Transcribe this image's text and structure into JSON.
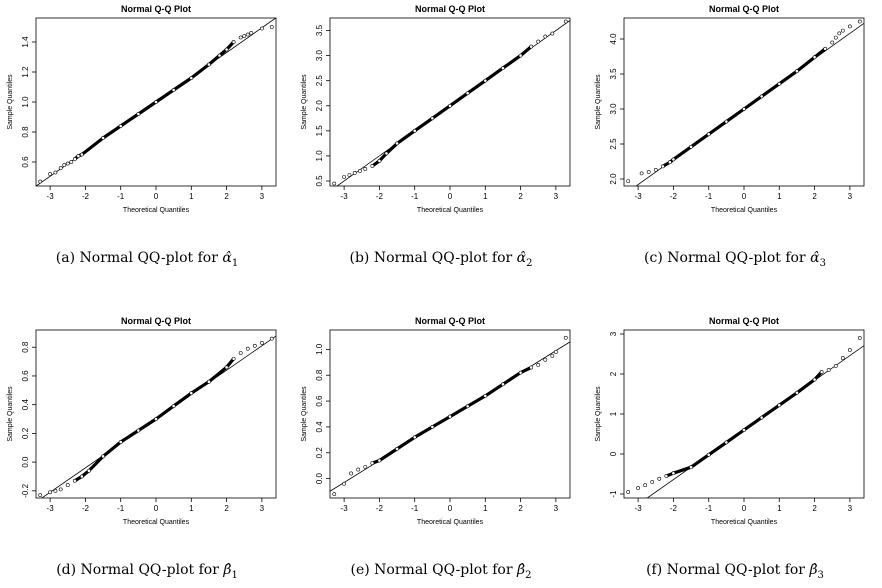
{
  "chart_data": [
    {
      "type": "scatter",
      "title": "Normal Q-Q Plot",
      "xlabel": "Theoretical Quantiles",
      "ylabel": "Sample Quantiles",
      "xlim": [
        -3.4,
        3.4
      ],
      "ylim": [
        0.44,
        1.56
      ],
      "xticks": [
        -3,
        -2,
        -1,
        0,
        1,
        2,
        3
      ],
      "yticks": [
        0.6,
        0.8,
        1.0,
        1.2,
        1.4
      ],
      "ytick_labels": [
        "0.6",
        "0.8",
        "1.0",
        "1.2",
        "1.4"
      ],
      "reference_line": {
        "intercept": 1.0,
        "slope": 0.165
      },
      "points": [
        [
          -3.28,
          0.47
        ],
        [
          -3.0,
          0.52
        ],
        [
          -2.85,
          0.53
        ],
        [
          -2.7,
          0.56
        ],
        [
          -2.6,
          0.58
        ],
        [
          -2.5,
          0.59
        ],
        [
          -2.4,
          0.6
        ],
        [
          -2.3,
          0.62
        ],
        [
          -2.2,
          0.64
        ],
        [
          -2.1,
          0.65
        ],
        [
          -1.5,
          0.76
        ],
        [
          -1.0,
          0.84
        ],
        [
          -0.5,
          0.92
        ],
        [
          0,
          1.0
        ],
        [
          0.5,
          1.08
        ],
        [
          1.0,
          1.16
        ],
        [
          1.5,
          1.25
        ],
        [
          1.8,
          1.31
        ],
        [
          2.0,
          1.35
        ],
        [
          2.2,
          1.4
        ],
        [
          2.4,
          1.43
        ],
        [
          2.5,
          1.44
        ],
        [
          2.6,
          1.45
        ],
        [
          2.7,
          1.46
        ],
        [
          3.0,
          1.49
        ],
        [
          3.28,
          1.5
        ]
      ],
      "caption": {
        "text": "(a) Normal QQ-plot for",
        "symbol": "α̂",
        "sub": "1"
      }
    },
    {
      "type": "scatter",
      "title": "Normal Q-Q Plot",
      "xlabel": "Theoretical Quantiles",
      "ylabel": "Sample Quantiles",
      "xlim": [
        -3.4,
        3.4
      ],
      "ylim": [
        0.4,
        3.75
      ],
      "xticks": [
        -3,
        -2,
        -1,
        0,
        1,
        2,
        3
      ],
      "yticks": [
        0.5,
        1.0,
        1.5,
        2.0,
        2.5,
        3.0,
        3.5
      ],
      "ytick_labels": [
        "0.5",
        "1.0",
        "1.5",
        "2.0",
        "2.5",
        "3.0",
        "3.5"
      ],
      "reference_line": {
        "intercept": 2.0,
        "slope": 0.5
      },
      "points": [
        [
          -3.28,
          0.45
        ],
        [
          -3.0,
          0.58
        ],
        [
          -2.85,
          0.62
        ],
        [
          -2.7,
          0.66
        ],
        [
          -2.55,
          0.7
        ],
        [
          -2.4,
          0.74
        ],
        [
          -2.2,
          0.8
        ],
        [
          -2.0,
          0.9
        ],
        [
          -1.8,
          1.05
        ],
        [
          -1.5,
          1.25
        ],
        [
          -1.0,
          1.5
        ],
        [
          -0.5,
          1.75
        ],
        [
          0,
          2.0
        ],
        [
          0.5,
          2.25
        ],
        [
          1.0,
          2.5
        ],
        [
          1.5,
          2.75
        ],
        [
          2.0,
          3.0
        ],
        [
          2.3,
          3.18
        ],
        [
          2.5,
          3.28
        ],
        [
          2.7,
          3.38
        ],
        [
          2.9,
          3.44
        ],
        [
          3.28,
          3.68
        ]
      ],
      "caption": {
        "text": "(b) Normal QQ-plot for",
        "symbol": "α̂",
        "sub": "2"
      }
    },
    {
      "type": "scatter",
      "title": "Normal Q-Q Plot",
      "xlabel": "Theoretical Quantiles",
      "ylabel": "Sample Quantiles",
      "xlim": [
        -3.4,
        3.4
      ],
      "ylim": [
        1.9,
        4.3
      ],
      "xticks": [
        -3,
        -2,
        -1,
        0,
        1,
        2,
        3
      ],
      "yticks": [
        2.0,
        2.5,
        3.0,
        3.5,
        4.0
      ],
      "ytick_labels": [
        "2.0",
        "2.5",
        "3.0",
        "3.5",
        "4.0"
      ],
      "reference_line": {
        "intercept": 3.0,
        "slope": 0.36
      },
      "points": [
        [
          -3.28,
          1.97
        ],
        [
          -2.9,
          2.08
        ],
        [
          -2.7,
          2.1
        ],
        [
          -2.5,
          2.13
        ],
        [
          -2.3,
          2.18
        ],
        [
          -2.1,
          2.24
        ],
        [
          -2.0,
          2.28
        ],
        [
          -1.5,
          2.46
        ],
        [
          -1.0,
          2.64
        ],
        [
          -0.5,
          2.82
        ],
        [
          0,
          3.0
        ],
        [
          0.5,
          3.18
        ],
        [
          1.0,
          3.36
        ],
        [
          1.5,
          3.54
        ],
        [
          2.0,
          3.74
        ],
        [
          2.3,
          3.86
        ],
        [
          2.5,
          3.95
        ],
        [
          2.6,
          4.02
        ],
        [
          2.7,
          4.08
        ],
        [
          2.8,
          4.12
        ],
        [
          3.0,
          4.18
        ],
        [
          3.28,
          4.25
        ]
      ],
      "caption": {
        "text": "(c) Normal QQ-plot for",
        "symbol": "α̂",
        "sub": "3"
      }
    },
    {
      "type": "scatter",
      "title": "Normal Q-Q Plot",
      "xlabel": "Theoretical Quantiles",
      "ylabel": "Sample Quantiles",
      "xlim": [
        -3.4,
        3.4
      ],
      "ylim": [
        -0.25,
        0.92
      ],
      "xticks": [
        -3,
        -2,
        -1,
        0,
        1,
        2,
        3
      ],
      "yticks": [
        -0.2,
        0.0,
        0.2,
        0.4,
        0.6,
        0.8
      ],
      "ytick_labels": [
        "-0.2",
        "0.0",
        "0.2",
        "0.4",
        "0.6",
        "0.8"
      ],
      "reference_line": {
        "intercept": 0.3,
        "slope": 0.17
      },
      "points": [
        [
          -3.28,
          -0.23
        ],
        [
          -3.0,
          -0.21
        ],
        [
          -2.85,
          -0.2
        ],
        [
          -2.7,
          -0.19
        ],
        [
          -2.5,
          -0.16
        ],
        [
          -2.3,
          -0.13
        ],
        [
          -2.1,
          -0.1
        ],
        [
          -1.9,
          -0.06
        ],
        [
          -1.5,
          0.04
        ],
        [
          -1.0,
          0.14
        ],
        [
          -0.5,
          0.22
        ],
        [
          0,
          0.3
        ],
        [
          0.5,
          0.39
        ],
        [
          1.0,
          0.48
        ],
        [
          1.5,
          0.56
        ],
        [
          2.0,
          0.66
        ],
        [
          2.2,
          0.72
        ],
        [
          2.4,
          0.76
        ],
        [
          2.6,
          0.79
        ],
        [
          2.8,
          0.81
        ],
        [
          3.0,
          0.83
        ],
        [
          3.28,
          0.86
        ]
      ],
      "caption": {
        "text": "(d) Normal QQ-plot for",
        "symbol": "β̂",
        "sub": "1"
      }
    },
    {
      "type": "scatter",
      "title": "Normal Q-Q Plot",
      "xlabel": "Theoretical Quantiles",
      "ylabel": "Sample Quantiles",
      "xlim": [
        -3.4,
        3.4
      ],
      "ylim": [
        -0.15,
        1.15
      ],
      "xticks": [
        -3,
        -2,
        -1,
        0,
        1,
        2,
        3
      ],
      "yticks": [
        0.0,
        0.2,
        0.4,
        0.6,
        0.8,
        1.0
      ],
      "ytick_labels": [
        "0.0",
        "0.2",
        "0.4",
        "0.6",
        "0.8",
        "1.0"
      ],
      "reference_line": {
        "intercept": 0.48,
        "slope": 0.17
      },
      "points": [
        [
          -3.28,
          -0.12
        ],
        [
          -3.0,
          -0.04
        ],
        [
          -2.8,
          0.04
        ],
        [
          -2.6,
          0.07
        ],
        [
          -2.4,
          0.09
        ],
        [
          -2.2,
          0.12
        ],
        [
          -2.0,
          0.14
        ],
        [
          -1.5,
          0.23
        ],
        [
          -1.0,
          0.32
        ],
        [
          -0.5,
          0.4
        ],
        [
          0,
          0.48
        ],
        [
          0.5,
          0.56
        ],
        [
          1.0,
          0.64
        ],
        [
          1.5,
          0.73
        ],
        [
          2.0,
          0.82
        ],
        [
          2.3,
          0.86
        ],
        [
          2.5,
          0.88
        ],
        [
          2.7,
          0.92
        ],
        [
          2.9,
          0.95
        ],
        [
          3.0,
          0.98
        ],
        [
          3.28,
          1.09
        ]
      ],
      "caption": {
        "text": "(e) Normal QQ-plot for",
        "symbol": "β̂",
        "sub": "2"
      }
    },
    {
      "type": "scatter",
      "title": "Normal Q-Q Plot",
      "xlabel": "Theoretical Quantiles",
      "ylabel": "Sample Quantiles",
      "xlim": [
        -3.4,
        3.4
      ],
      "ylim": [
        -1.1,
        3.1
      ],
      "xticks": [
        -3,
        -2,
        -1,
        0,
        1,
        2,
        3
      ],
      "yticks": [
        -1,
        0,
        1,
        2,
        3
      ],
      "ytick_labels": [
        "-1",
        "0",
        "1",
        "2",
        "3"
      ],
      "reference_line": {
        "intercept": 0.6,
        "slope": 0.62
      },
      "points": [
        [
          -3.28,
          -0.95
        ],
        [
          -3.0,
          -0.85
        ],
        [
          -2.8,
          -0.78
        ],
        [
          -2.6,
          -0.7
        ],
        [
          -2.4,
          -0.62
        ],
        [
          -2.2,
          -0.55
        ],
        [
          -2.0,
          -0.48
        ],
        [
          -1.5,
          -0.33
        ],
        [
          -1.0,
          -0.02
        ],
        [
          -0.5,
          0.29
        ],
        [
          0,
          0.6
        ],
        [
          0.5,
          0.91
        ],
        [
          1.0,
          1.22
        ],
        [
          1.5,
          1.53
        ],
        [
          2.0,
          1.86
        ],
        [
          2.2,
          2.05
        ],
        [
          2.4,
          2.1
        ],
        [
          2.6,
          2.2
        ],
        [
          2.8,
          2.4
        ],
        [
          3.0,
          2.6
        ],
        [
          3.28,
          2.9
        ]
      ],
      "caption": {
        "text": "(f) Normal QQ-plot for",
        "symbol": "β̂",
        "sub": "3"
      }
    }
  ]
}
